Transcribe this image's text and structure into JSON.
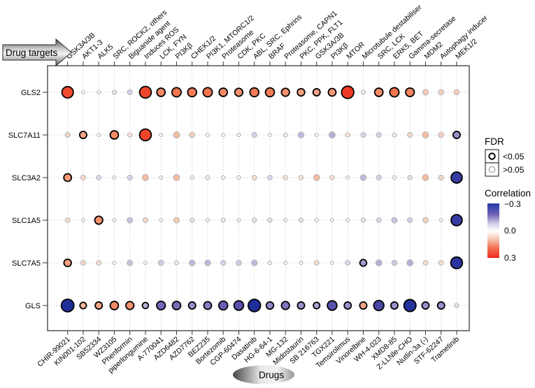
{
  "header": {
    "drug_targets_label": "Drug targets"
  },
  "footer": {
    "drugs_label": "Drugs"
  },
  "legend": {
    "fdr_title": "FDR",
    "fdr_sig_label": "<0.05",
    "fdr_nonsig_label": ">0.05",
    "correlation_title": "Correlation",
    "corr_tick_top": "−0.3",
    "corr_tick_mid": "0.0",
    "corr_tick_bottom": "0.3"
  },
  "colors": {
    "positive_max": "#ee3b25",
    "negative_max": "#1e2f9b",
    "mid": "#ffffff",
    "sig_border": "#000000",
    "nonsig_border": "#b9b9b9",
    "plot_border": "#7f7f7f",
    "grid": "#dcdcdc"
  },
  "chart_data": {
    "type": "bubble-matrix",
    "title": "",
    "x_top_axis": "Drug targets",
    "x_bottom_axis": "Drugs",
    "color_range": [
      -0.3,
      0.3
    ],
    "x_top_labels": [
      "GSK3A/3B",
      "AKT1-3",
      "ALK5",
      "SRC, ROCK2, others",
      "Biguanide agent",
      "Induces ROS",
      "LCK, FYN",
      "PI3Kβ",
      "CHEK1/2",
      "PI3K1, MTORC1/2",
      "Proteasome",
      "CDK, PKC",
      "ABL, SRC, Ephrins",
      "BRAF",
      "Proteasome, CAPN1",
      "PKC, PPK, FLT1",
      "GSK3A/3B",
      "PI3Kβ",
      "MTOR",
      "Microtubule destabiliser",
      "SRC, LCK",
      "ERK5, BET",
      "Gamma-secretase",
      "MDM2",
      "Autophagy inducer",
      "MEK1/2"
    ],
    "x_bottom_labels": [
      "CHIR-99021",
      "KIN001-102",
      "SB52334",
      "WZ3105",
      "Phenformin",
      "piperlongumine",
      "A-770041",
      "AZD6482",
      "AZD7762",
      "BEZ235",
      "Bortezomib",
      "CGP-60474",
      "Dasatinib",
      "HG-6-64-1",
      "MG-132",
      "Midostaurin",
      "SB 216763",
      "TGX221",
      "Temsirolimus",
      "Vinorelbine",
      "WH-4-023",
      "XMD8-85",
      "Z-LLNle-CHO",
      "Nutlin-3a (-)",
      "STF-62247",
      "Trametinib"
    ],
    "y_labels": [
      "GLS2",
      "SLC7A11",
      "SLC3A2",
      "SLC1A5",
      "SLC7A5",
      "GLS"
    ],
    "series": [
      {
        "row": "GLS2",
        "correlations": [
          0.27,
          0.01,
          0.01,
          -0.04,
          -0.06,
          0.28,
          0.17,
          0.2,
          0.19,
          0.2,
          0.17,
          0.16,
          0.19,
          0.19,
          0.16,
          0.14,
          0.13,
          0.15,
          0.3,
          0.03,
          0.17,
          0.2,
          0.18,
          0.08,
          0.07,
          0.07
        ],
        "fdr_significant": [
          1,
          0,
          0,
          0,
          0,
          1,
          1,
          1,
          1,
          1,
          1,
          1,
          1,
          1,
          1,
          1,
          1,
          1,
          1,
          0,
          1,
          1,
          1,
          0,
          0,
          0
        ]
      },
      {
        "row": "SLC7A11",
        "correlations": [
          0.06,
          0.13,
          0.01,
          0.17,
          0.04,
          0.28,
          0.01,
          0.1,
          0.07,
          0.01,
          0.01,
          0.02,
          -0.06,
          0.01,
          0.03,
          -0.09,
          -0.01,
          -0.1,
          0.04,
          -0.06,
          -0.06,
          -0.03,
          0.06,
          0.1,
          0.07,
          -0.13
        ],
        "fdr_significant": [
          0,
          1,
          0,
          1,
          0,
          1,
          0,
          0,
          0,
          0,
          0,
          0,
          0,
          0,
          0,
          0,
          0,
          0,
          0,
          0,
          0,
          0,
          0,
          0,
          0,
          1
        ]
      },
      {
        "row": "SLC3A2",
        "correlations": [
          0.15,
          0.06,
          -0.05,
          0.01,
          -0.06,
          0.1,
          0.01,
          0.1,
          0.02,
          0.03,
          0.02,
          0.02,
          0.05,
          -0.05,
          0.04,
          0.04,
          0.1,
          0.04,
          0.01,
          -0.09,
          -0.06,
          0.02,
          -0.04,
          0.1,
          0.06,
          -0.26
        ],
        "fdr_significant": [
          1,
          0,
          0,
          0,
          0,
          0,
          0,
          0,
          0,
          0,
          0,
          0,
          0,
          0,
          0,
          0,
          0,
          0,
          0,
          0,
          0,
          0,
          0,
          0,
          0,
          1
        ]
      },
      {
        "row": "SLC1A5",
        "correlations": [
          0.05,
          0.01,
          0.16,
          0.01,
          -0.08,
          0.06,
          0.01,
          0.08,
          -0.04,
          0.01,
          -0.03,
          0.01,
          -0.04,
          -0.04,
          0.01,
          -0.04,
          -0.01,
          0.01,
          -0.01,
          -0.04,
          -0.05,
          -0.08,
          -0.06,
          0.07,
          -0.01,
          -0.26
        ],
        "fdr_significant": [
          0,
          0,
          1,
          0,
          0,
          0,
          0,
          0,
          0,
          0,
          0,
          0,
          0,
          0,
          0,
          0,
          0,
          0,
          0,
          0,
          0,
          0,
          0,
          0,
          0,
          1
        ]
      },
      {
        "row": "SLC7A5",
        "correlations": [
          0.14,
          0.06,
          0.05,
          0.01,
          -0.08,
          -0.01,
          -0.07,
          0.03,
          -0.09,
          -0.09,
          -0.06,
          -0.07,
          -0.09,
          -0.02,
          -0.01,
          -0.01,
          0.05,
          -0.01,
          -0.05,
          -0.12,
          -0.1,
          -0.07,
          -0.1,
          0.05,
          0.05,
          -0.28
        ],
        "fdr_significant": [
          1,
          0,
          0,
          0,
          0,
          0,
          0,
          0,
          0,
          0,
          0,
          0,
          0,
          0,
          0,
          0,
          0,
          0,
          0,
          1,
          0,
          0,
          0,
          0,
          0,
          1
        ]
      },
      {
        "row": "GLS",
        "correlations": [
          -0.31,
          0.11,
          0.13,
          0.17,
          0.16,
          -0.1,
          -0.18,
          -0.17,
          -0.13,
          -0.15,
          -0.19,
          -0.21,
          -0.3,
          -0.14,
          -0.16,
          -0.13,
          -0.11,
          -0.21,
          -0.13,
          0.13,
          -0.23,
          -0.13,
          -0.29,
          -0.13,
          -0.13,
          -0.04
        ],
        "fdr_significant": [
          1,
          1,
          1,
          1,
          1,
          1,
          1,
          1,
          1,
          1,
          1,
          1,
          1,
          1,
          1,
          1,
          1,
          1,
          1,
          1,
          1,
          1,
          1,
          1,
          1,
          0
        ]
      }
    ]
  }
}
